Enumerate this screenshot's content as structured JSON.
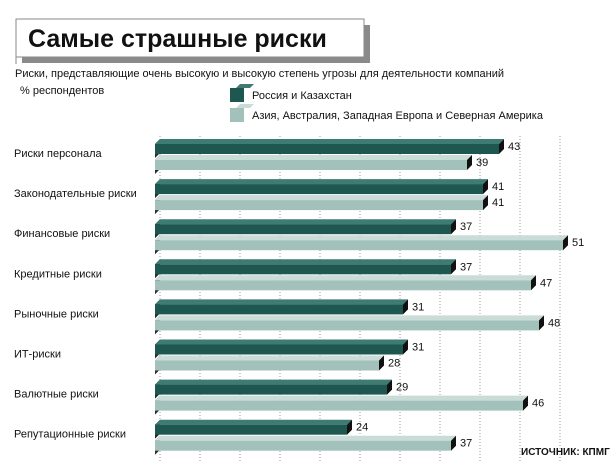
{
  "colors": {
    "series_a": "#1d5750",
    "series_a_top": "#3d7b73",
    "series_b": "#a3c1bb",
    "series_b_top": "#c9dcd8",
    "grid": "#9a9a9a",
    "frame": "#9a9a9a"
  },
  "chart_data": {
    "type": "bar",
    "orientation": "horizontal",
    "title": "Самые страшные риски",
    "subtitle": "Риски, представляющие очень высокую и высокую степень угрозы для деятельности компаний",
    "unit_label": "% респондентов",
    "source": "ИСТОЧНИК: КПМГ",
    "legend_position": "top-right",
    "grid": true,
    "xlim": [
      0,
      51
    ],
    "categories": [
      "Риски персонала",
      "Законодательные риски",
      "Финансовые риски",
      "Кредитные риски",
      "Рыночные риски",
      "ИТ-риски",
      "Валютные риски",
      "Репутационные риски"
    ],
    "series": [
      {
        "name": "Россия и Казахстан",
        "values": [
          43,
          41,
          37,
          37,
          31,
          31,
          29,
          24
        ]
      },
      {
        "name": "Азия, Австралия, Западная Европа и Северная Америка",
        "values": [
          39,
          41,
          51,
          47,
          48,
          28,
          46,
          37
        ]
      }
    ]
  }
}
